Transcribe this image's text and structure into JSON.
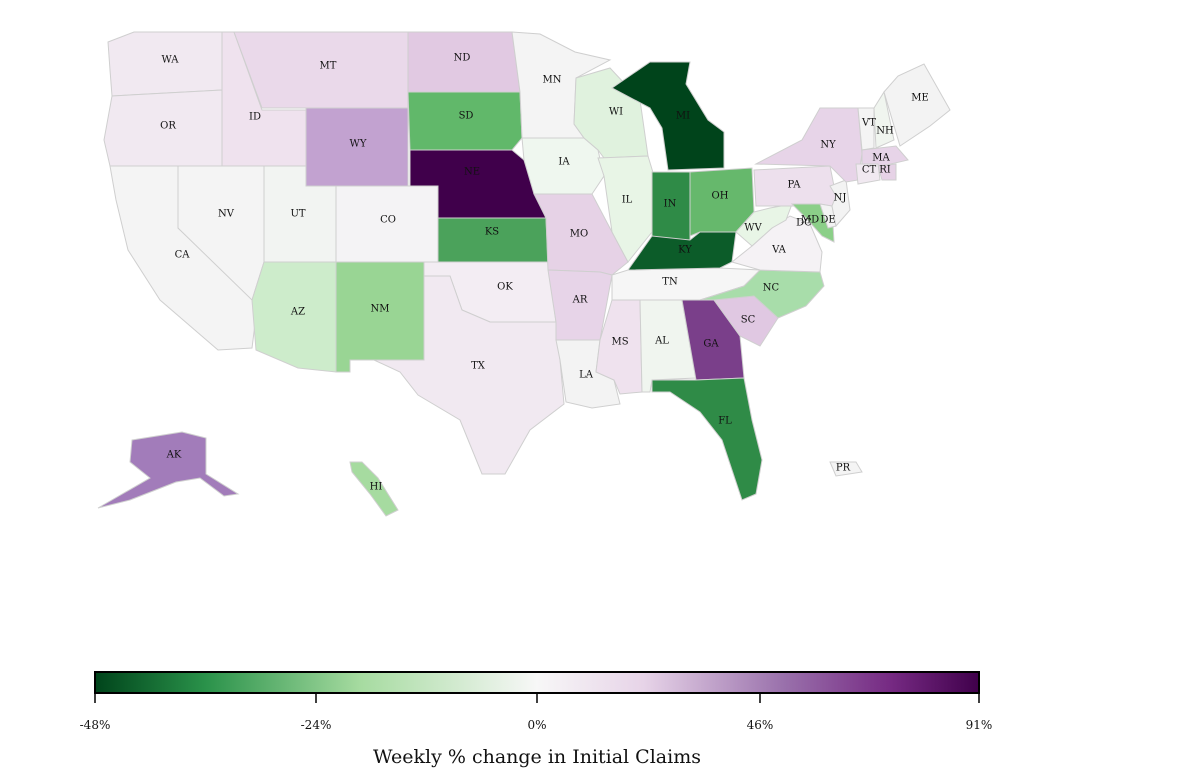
{
  "colorbar": {
    "title": "Weekly % change in Initial Claims",
    "ticks": [
      "-48%",
      "-24%",
      "0%",
      "46%",
      "91%"
    ],
    "stops": [
      "#00441b",
      "#2a924a",
      "#a6dba0",
      "#f7f7f7",
      "#e7d4e8",
      "#9970ab",
      "#762a83",
      "#40004b"
    ]
  },
  "states": {
    "WA": "#f1e9f1",
    "OR": "#f1e9f1",
    "CA": "#f4f4f4",
    "NV": "#f4f4f4",
    "ID": "#efe2ee",
    "MT": "#ead9ea",
    "WY": "#c2a2d0",
    "UT": "#f2f4f2",
    "CO": "#f4f3f5",
    "AZ": "#cdeccb",
    "NM": "#99d594",
    "ND": "#e1c9e2",
    "SD": "#61b86a",
    "NE": "#40004b",
    "KS": "#4ba25b",
    "OK": "#f3edf3",
    "TX": "#f1e9f1",
    "MN": "#f4f4f4",
    "IA": "#eff7ef",
    "MO": "#e6d2e6",
    "AR": "#e7d4e8",
    "LA": "#f3f3f3",
    "WI": "#e0f2de",
    "IL": "#e8f5e6",
    "MS": "#efe2ee",
    "AL": "#f0f5ef",
    "MI": "#00441b",
    "IN": "#2f8b47",
    "OH": "#66b86c",
    "KY": "#0c5c29",
    "TN": "#f6f6f6",
    "GA": "#7a3f8a",
    "FL": "#2f8b47",
    "SC": "#e0c8e2",
    "NC": "#a8ddaa",
    "VA": "#f5f2f5",
    "WV": "#e8f5e6",
    "PA": "#ede0ed",
    "NY": "#e7d4e8",
    "VT": "#f4f4f4",
    "NH": "#f0f5ef",
    "ME": "#f3f3f3",
    "MA": "#e7d4e8",
    "RI": "#e6d2e6",
    "CT": "#f1e9f1",
    "NJ": "#f3f3f3",
    "DE": "#f3f3f3",
    "MD": "#8bcf88",
    "AK": "#a27cba",
    "HI": "#a6dba0",
    "PR": "#f4f4f4"
  }
}
